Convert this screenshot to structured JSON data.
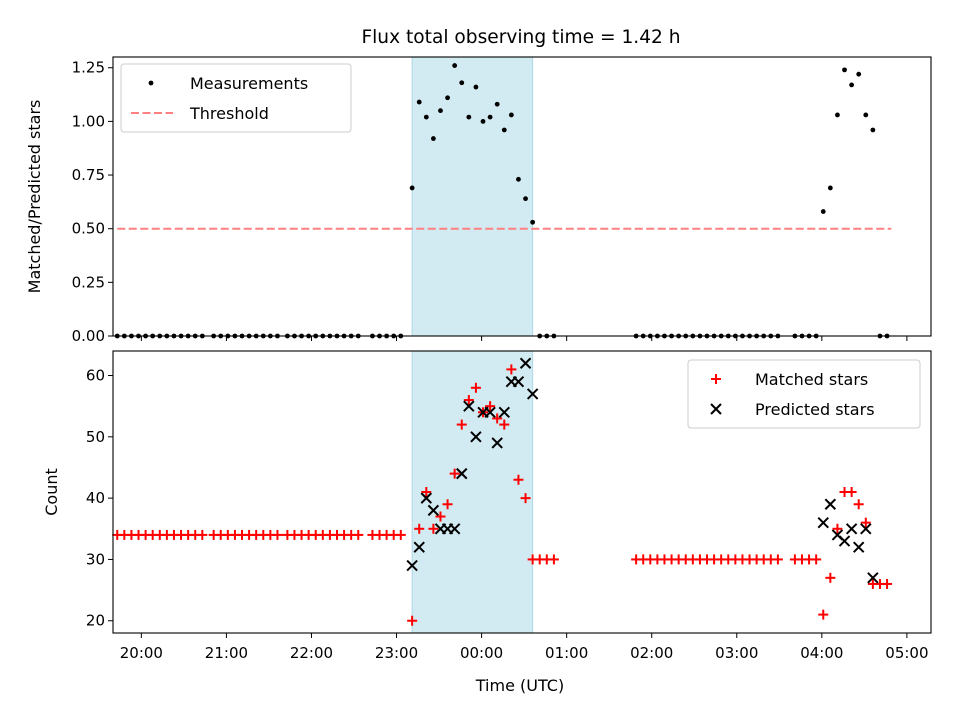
{
  "figure": {
    "title": "Flux total observing time = 1.42 h"
  },
  "colors": {
    "shade": "#add8e6",
    "threshold": "#ff8080",
    "matched": "#ff0000",
    "predicted": "#000000",
    "measurement": "#000000"
  },
  "chart_data": [
    {
      "type": "scatter",
      "ylabel": "Matched/Predicted stars",
      "xlim": [
        "19:40",
        "05:17"
      ],
      "ylim": [
        0,
        1.3
      ],
      "x_tick_labels": [
        "20:00",
        "21:00",
        "22:00",
        "23:00",
        "00:00",
        "01:00",
        "02:00",
        "03:00",
        "04:00",
        "05:00"
      ],
      "y_tick_labels": [
        "0.00",
        "0.25",
        "0.50",
        "0.75",
        "1.00",
        "1.25"
      ],
      "shaded_span": [
        "23:11",
        "00:36"
      ],
      "legend": {
        "placement": "upper-left",
        "entries": [
          "Measurements",
          "Threshold"
        ]
      },
      "threshold": {
        "name": "Threshold",
        "y": 0.5,
        "x_range": [
          "19:43",
          "04:49"
        ]
      },
      "series": [
        {
          "name": "Measurements",
          "x": [
            "19:43",
            "19:48",
            "19:53",
            "19:58",
            "20:03",
            "20:08",
            "20:13",
            "20:18",
            "20:23",
            "20:28",
            "20:33",
            "20:38",
            "20:43",
            "20:51",
            "20:56",
            "21:01",
            "21:06",
            "21:11",
            "21:16",
            "21:21",
            "21:26",
            "21:31",
            "21:36",
            "21:43",
            "21:48",
            "21:53",
            "21:58",
            "22:03",
            "22:08",
            "22:13",
            "22:18",
            "22:23",
            "22:28",
            "22:33",
            "22:43",
            "22:48",
            "22:53",
            "22:58",
            "23:03",
            "23:11",
            "23:16",
            "23:21",
            "23:26",
            "23:31",
            "23:36",
            "23:41",
            "23:46",
            "23:51",
            "23:56",
            "00:01",
            "00:06",
            "00:11",
            "00:16",
            "00:21",
            "00:26",
            "00:31",
            "00:36",
            "00:41",
            "00:46",
            "00:51",
            "01:49",
            "01:54",
            "01:59",
            "02:04",
            "02:09",
            "02:14",
            "02:19",
            "02:24",
            "02:29",
            "02:34",
            "02:39",
            "02:44",
            "02:49",
            "02:54",
            "02:59",
            "03:04",
            "03:09",
            "03:14",
            "03:19",
            "03:24",
            "03:29",
            "03:41",
            "03:46",
            "03:51",
            "03:56",
            "04:01",
            "04:06",
            "04:11",
            "04:16",
            "04:21",
            "04:26",
            "04:31",
            "04:36",
            "04:41",
            "04:46"
          ],
          "y": [
            0,
            0,
            0,
            0,
            0,
            0,
            0,
            0,
            0,
            0,
            0,
            0,
            0,
            0,
            0,
            0,
            0,
            0,
            0,
            0,
            0,
            0,
            0,
            0,
            0,
            0,
            0,
            0,
            0,
            0,
            0,
            0,
            0,
            0,
            0,
            0,
            0,
            0,
            0,
            0.69,
            1.09,
            1.02,
            0.92,
            1.05,
            1.11,
            1.26,
            1.18,
            1.02,
            1.16,
            1.0,
            1.02,
            1.08,
            0.96,
            1.03,
            0.73,
            0.64,
            0.53,
            0,
            0,
            0,
            0,
            0,
            0,
            0,
            0,
            0,
            0,
            0,
            0,
            0,
            0,
            0,
            0,
            0,
            0,
            0,
            0,
            0,
            0,
            0,
            0,
            0,
            0,
            0,
            0,
            0.58,
            0.69,
            1.03,
            1.24,
            1.17,
            1.22,
            1.03,
            0.96,
            0,
            0
          ]
        }
      ]
    },
    {
      "type": "scatter",
      "xlabel": "Time (UTC)",
      "ylabel": "Count",
      "xlim": [
        "19:40",
        "05:17"
      ],
      "ylim": [
        18,
        64
      ],
      "x_tick_labels": [
        "20:00",
        "21:00",
        "22:00",
        "23:00",
        "00:00",
        "01:00",
        "02:00",
        "03:00",
        "04:00",
        "05:00"
      ],
      "y_tick_labels": [
        "20",
        "30",
        "40",
        "50",
        "60"
      ],
      "shaded_span": [
        "23:11",
        "00:36"
      ],
      "legend": {
        "placement": "upper-right",
        "entries": [
          "Matched stars",
          "Predicted stars"
        ]
      },
      "series": [
        {
          "name": "Matched stars",
          "x": [
            "19:43",
            "19:48",
            "19:53",
            "19:58",
            "20:03",
            "20:08",
            "20:13",
            "20:18",
            "20:23",
            "20:28",
            "20:33",
            "20:38",
            "20:43",
            "20:51",
            "20:56",
            "21:01",
            "21:06",
            "21:11",
            "21:16",
            "21:21",
            "21:26",
            "21:31",
            "21:36",
            "21:43",
            "21:48",
            "21:53",
            "21:58",
            "22:03",
            "22:08",
            "22:13",
            "22:18",
            "22:23",
            "22:28",
            "22:33",
            "22:43",
            "22:48",
            "22:53",
            "22:58",
            "23:03",
            "23:11",
            "23:16",
            "23:21",
            "23:26",
            "23:31",
            "23:36",
            "23:41",
            "23:46",
            "23:51",
            "23:56",
            "00:01",
            "00:06",
            "00:11",
            "00:16",
            "00:21",
            "00:26",
            "00:31",
            "00:36",
            "00:41",
            "00:46",
            "00:51",
            "01:49",
            "01:54",
            "01:59",
            "02:04",
            "02:09",
            "02:14",
            "02:19",
            "02:24",
            "02:29",
            "02:34",
            "02:39",
            "02:44",
            "02:49",
            "02:54",
            "02:59",
            "03:04",
            "03:09",
            "03:14",
            "03:19",
            "03:24",
            "03:29",
            "03:41",
            "03:46",
            "03:51",
            "03:56",
            "04:01",
            "04:06",
            "04:11",
            "04:16",
            "04:21",
            "04:26",
            "04:31",
            "04:36",
            "04:41",
            "04:46"
          ],
          "y": [
            34,
            34,
            34,
            34,
            34,
            34,
            34,
            34,
            34,
            34,
            34,
            34,
            34,
            34,
            34,
            34,
            34,
            34,
            34,
            34,
            34,
            34,
            34,
            34,
            34,
            34,
            34,
            34,
            34,
            34,
            34,
            34,
            34,
            34,
            34,
            34,
            34,
            34,
            34,
            20,
            35,
            41,
            35,
            37,
            39,
            44,
            52,
            56,
            58,
            54,
            55,
            53,
            52,
            61,
            43,
            40,
            30,
            30,
            30,
            30,
            30,
            30,
            30,
            30,
            30,
            30,
            30,
            30,
            30,
            30,
            30,
            30,
            30,
            30,
            30,
            30,
            30,
            30,
            30,
            30,
            30,
            30,
            30,
            30,
            30,
            21,
            27,
            35,
            41,
            41,
            39,
            36,
            26,
            26,
            26
          ]
        },
        {
          "name": "Predicted stars",
          "x": [
            "23:11",
            "23:16",
            "23:21",
            "23:26",
            "23:31",
            "23:36",
            "23:41",
            "23:46",
            "23:51",
            "23:56",
            "00:01",
            "00:06",
            "00:11",
            "00:16",
            "00:21",
            "00:26",
            "00:31",
            "00:36",
            "04:01",
            "04:06",
            "04:11",
            "04:16",
            "04:21",
            "04:26",
            "04:31",
            "04:36"
          ],
          "y": [
            29,
            32,
            40,
            38,
            35,
            35,
            35,
            44,
            55,
            50,
            54,
            54,
            49,
            54,
            59,
            59,
            62,
            57,
            36,
            39,
            34,
            33,
            35,
            32,
            35,
            27
          ]
        }
      ]
    }
  ]
}
